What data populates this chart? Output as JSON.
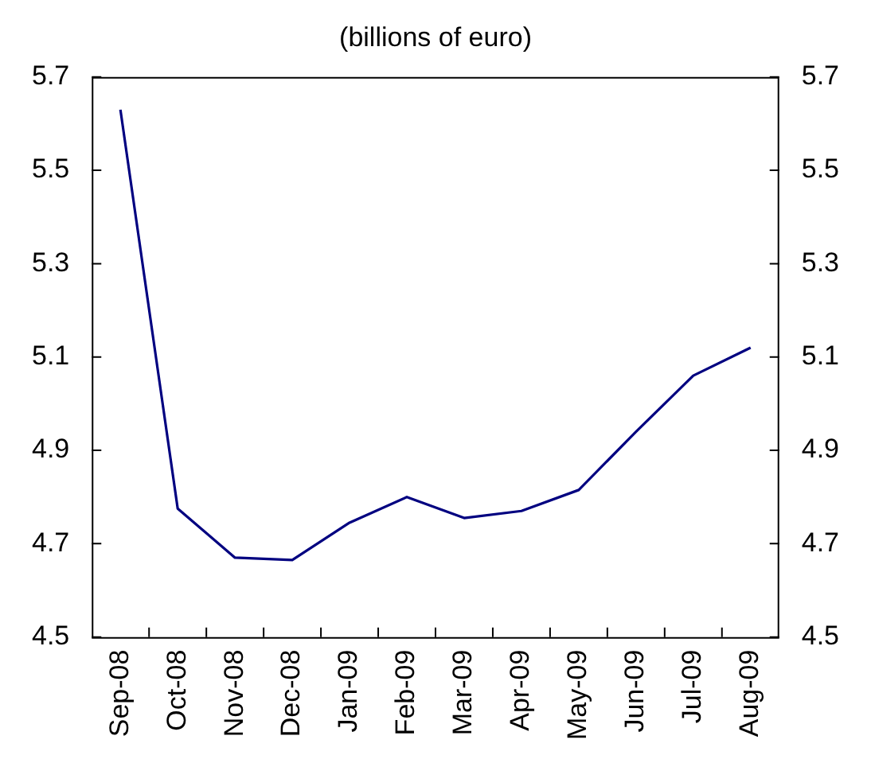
{
  "chart_data": {
    "type": "line",
    "title": "(billions of euro)",
    "categories": [
      "Sep-08",
      "Oct-08",
      "Nov-08",
      "Dec-08",
      "Jan-09",
      "Feb-09",
      "Mar-09",
      "Apr-09",
      "May-09",
      "Jun-09",
      "Jul-09",
      "Aug-09"
    ],
    "series": [
      {
        "color": "#000080",
        "values": [
          5.63,
          4.775,
          4.67,
          4.665,
          4.745,
          4.8,
          4.755,
          4.77,
          4.815,
          4.94,
          5.06,
          5.12
        ]
      }
    ],
    "ylim": [
      4.5,
      5.7
    ],
    "yticks": [
      {
        "value": 4.5,
        "label": "4.5"
      },
      {
        "value": 4.7,
        "label": "4.7"
      },
      {
        "value": 4.9,
        "label": "4.9"
      },
      {
        "value": 5.1,
        "label": "5.1"
      },
      {
        "value": 5.3,
        "label": "5.3"
      },
      {
        "value": 5.5,
        "label": "5.5"
      },
      {
        "value": 5.7,
        "label": "5.7"
      }
    ],
    "y2lim": [
      4.5,
      5.7
    ],
    "y2ticks": [
      {
        "value": 4.5,
        "label": "4.5"
      },
      {
        "value": 4.7,
        "label": "4.7"
      },
      {
        "value": 4.9,
        "label": "4.9"
      },
      {
        "value": 5.1,
        "label": "5.1"
      },
      {
        "value": 5.3,
        "label": "5.3"
      },
      {
        "value": 5.5,
        "label": "5.5"
      },
      {
        "value": 5.7,
        "label": "5.7"
      }
    ],
    "grid": false,
    "legend": false,
    "marker": "none",
    "line_style": "solid"
  }
}
